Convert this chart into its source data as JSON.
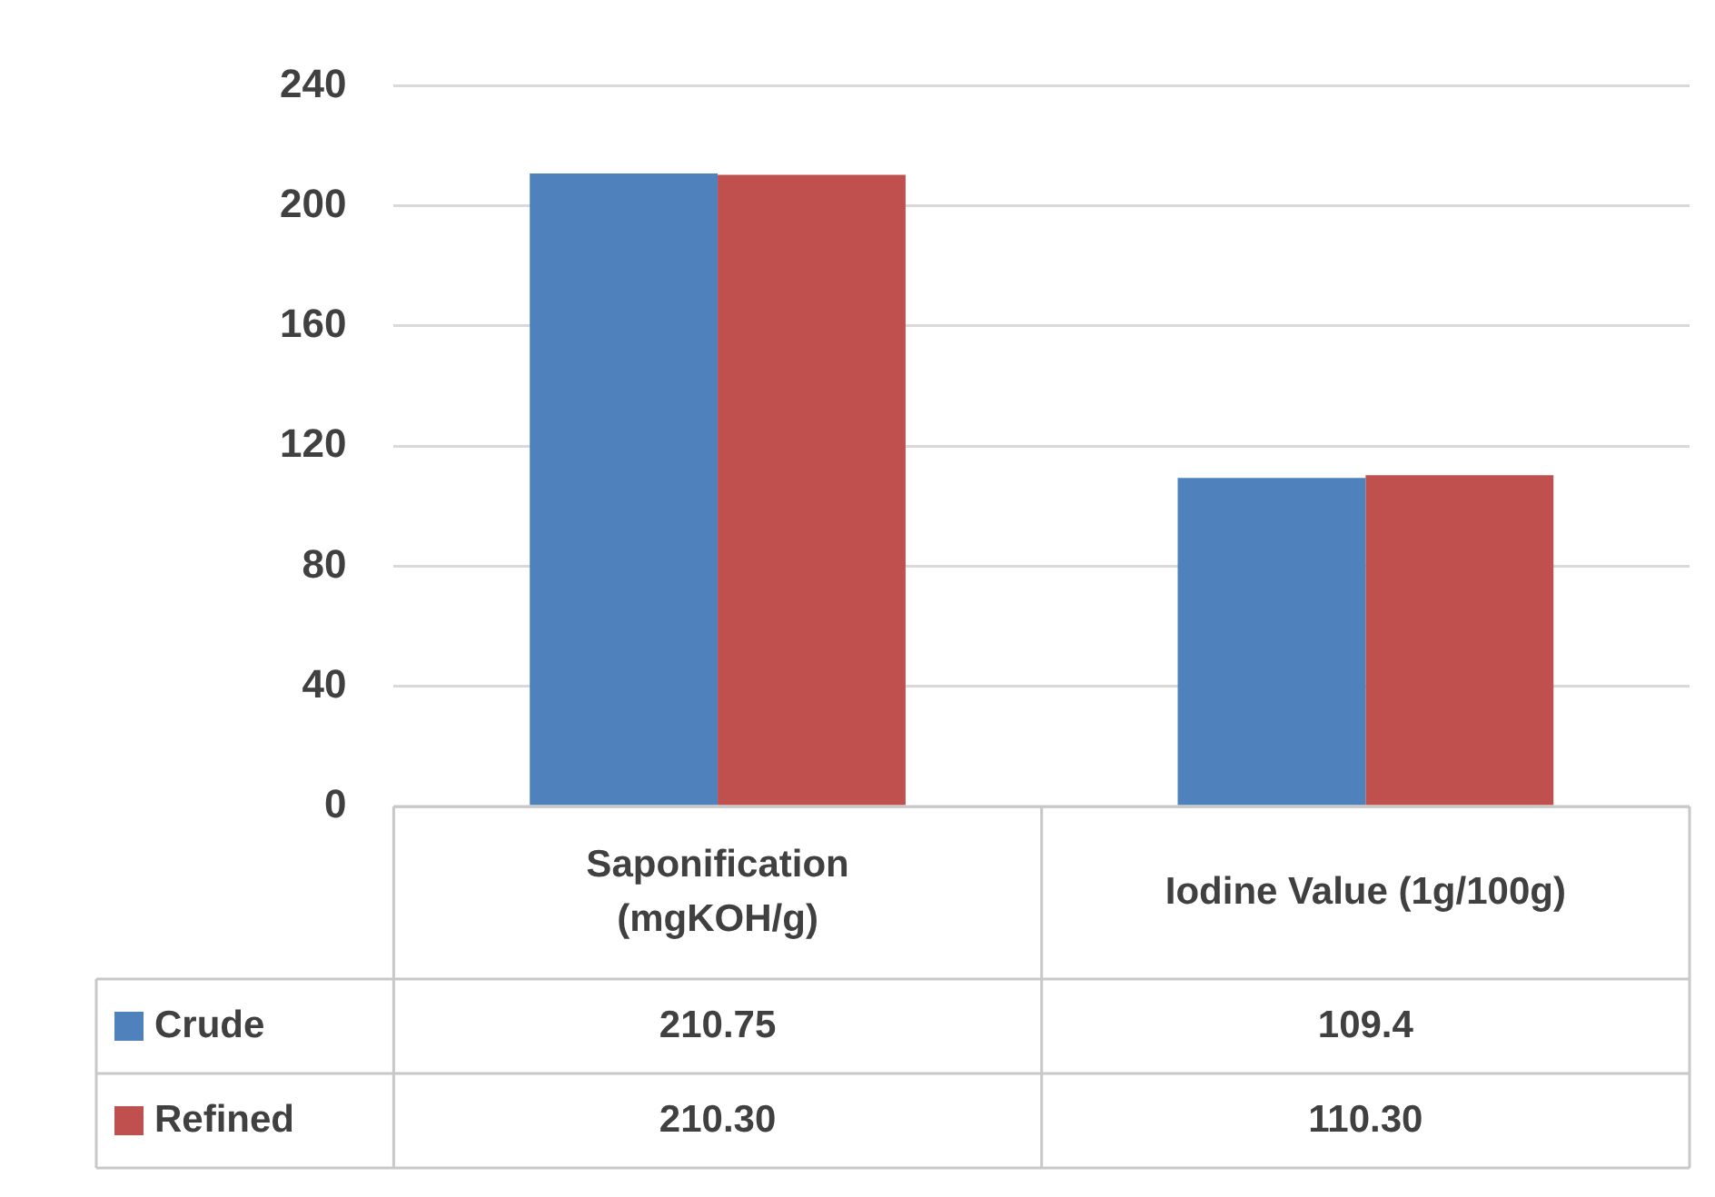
{
  "chart_data": {
    "type": "bar",
    "categories": [
      "Saponification (mgKOH/g)",
      "Iodine Value (1g/100g)"
    ],
    "series": [
      {
        "name": "Crude",
        "color": "#4f81bd",
        "values": [
          210.75,
          109.4
        ],
        "value_labels": [
          "210.75",
          "109.4"
        ]
      },
      {
        "name": "Refined",
        "color": "#c0504d",
        "values": [
          210.3,
          110.3
        ],
        "value_labels": [
          "210.30",
          "110.30"
        ]
      }
    ],
    "ylim": [
      0,
      240
    ],
    "yticks": [
      0,
      40,
      80,
      120,
      160,
      200,
      240
    ],
    "grid": "y",
    "legend": "bottom left"
  }
}
